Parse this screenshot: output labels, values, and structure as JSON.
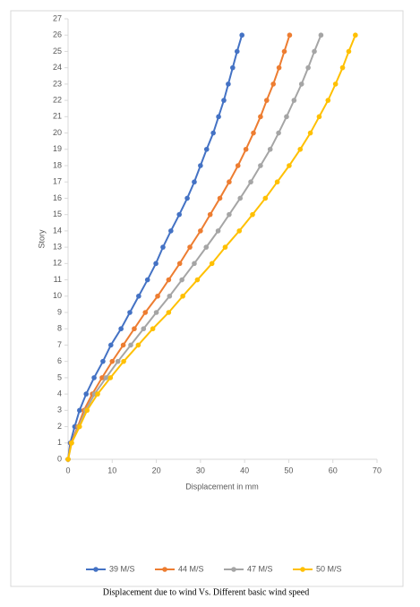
{
  "chart_data": {
    "type": "line",
    "xlabel": "Displacement in mm",
    "ylabel": "Story",
    "caption": "Displacement due to wind Vs.  Different basic wind speed",
    "y": [
      0,
      1,
      2,
      3,
      4,
      5,
      6,
      7,
      8,
      9,
      10,
      11,
      12,
      13,
      14,
      15,
      16,
      17,
      18,
      19,
      20,
      21,
      22,
      23,
      24,
      25,
      26
    ],
    "series": [
      {
        "name": "39 M/S",
        "color": "#4472c4",
        "x": [
          0,
          0.5,
          1.5,
          2.6,
          4.1,
          5.9,
          7.9,
          9.7,
          12,
          14,
          16,
          18,
          19.9,
          21.5,
          23.3,
          25.2,
          27,
          28.6,
          30,
          31.4,
          32.9,
          34.1,
          35.3,
          36.3,
          37.3,
          38.3,
          39.4
        ]
      },
      {
        "name": "44 M/S",
        "color": "#ed7d31",
        "x": [
          0,
          0.7,
          2.2,
          3.6,
          5.5,
          7.7,
          10,
          12.5,
          15,
          17.5,
          20.3,
          22.8,
          25.3,
          27.6,
          30,
          32.2,
          34.4,
          36.5,
          38.5,
          40.3,
          42,
          43.6,
          45,
          46.5,
          47.8,
          49,
          50.2
        ]
      },
      {
        "name": "47 M/S",
        "color": "#a5a5a5",
        "x": [
          0,
          0.8,
          2.4,
          4,
          6,
          8.6,
          11.3,
          14.2,
          17.1,
          20,
          23,
          25.8,
          28.6,
          31.3,
          34,
          36.5,
          39,
          41.4,
          43.6,
          45.8,
          47.7,
          49.5,
          51.2,
          52.9,
          54.4,
          55.8,
          57.3
        ]
      },
      {
        "name": "50 M/S",
        "color": "#ffc000",
        "x": [
          0,
          0.8,
          2.6,
          4.3,
          6.7,
          9.6,
          12.6,
          15.9,
          19.2,
          22.8,
          26,
          29.3,
          32.6,
          35.6,
          38.8,
          41.8,
          44.7,
          47.4,
          50.1,
          52.6,
          54.9,
          56.9,
          58.9,
          60.6,
          62.2,
          63.6,
          65.1
        ]
      }
    ],
    "xlim": [
      0,
      70
    ],
    "xticks": [
      0,
      10,
      20,
      30,
      40,
      50,
      60,
      70
    ],
    "ylim": [
      0,
      27
    ],
    "yticks": [
      0,
      1,
      2,
      3,
      4,
      5,
      6,
      7,
      8,
      9,
      10,
      11,
      12,
      13,
      14,
      15,
      16,
      17,
      18,
      19,
      20,
      21,
      22,
      23,
      24,
      25,
      26,
      27
    ],
    "grid": false,
    "legend": "bottom"
  }
}
